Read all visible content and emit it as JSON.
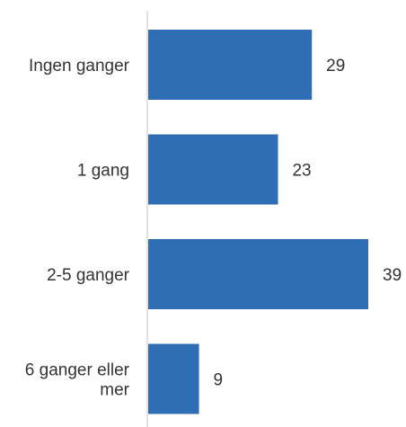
{
  "chart_data": {
    "type": "bar",
    "orientation": "horizontal",
    "categories": [
      "Ingen ganger",
      "1 gang",
      "2-5 ganger",
      "6 ganger eller mer"
    ],
    "category_lines": [
      [
        "Ingen ganger"
      ],
      [
        "1 gang"
      ],
      [
        "2-5 ganger"
      ],
      [
        "6 ganger eller",
        "mer"
      ]
    ],
    "values": [
      29,
      23,
      39,
      9
    ],
    "data_labels": [
      "29",
      "23",
      "39",
      "9"
    ],
    "xlim": [
      0,
      39
    ],
    "grid": false,
    "legend": "none",
    "colors": {
      "bar": "#2F6DB5",
      "axis": "#D9D9D9",
      "text": "#333333"
    }
  }
}
